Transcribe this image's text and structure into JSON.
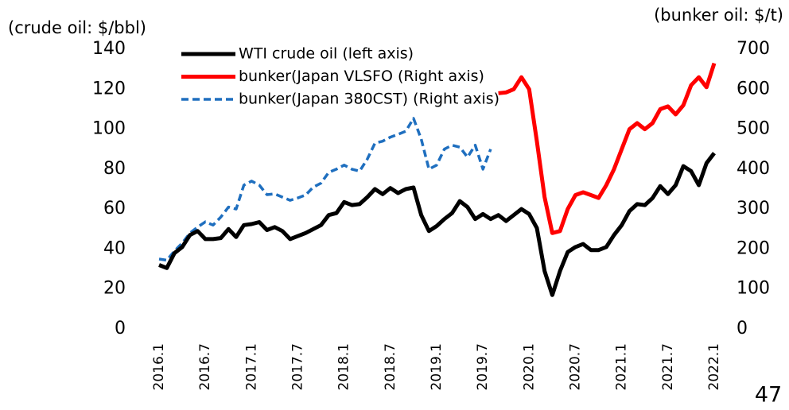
{
  "chart_data": {
    "type": "line",
    "y_label": "(crude oil: $/bbl)",
    "y2_label": "(bunker oil: $/t)",
    "page_number": "47",
    "categories": [
      "2016.1",
      null,
      null,
      null,
      null,
      null,
      "2016.7",
      null,
      null,
      null,
      null,
      null,
      "2017.1",
      null,
      null,
      null,
      null,
      null,
      "2017.7",
      null,
      null,
      null,
      null,
      null,
      "2018.1",
      null,
      null,
      null,
      null,
      null,
      "2018.7",
      null,
      null,
      null,
      null,
      null,
      "2019.1",
      null,
      null,
      null,
      null,
      null,
      "2019.7",
      null,
      null,
      null,
      null,
      null,
      "2020.1",
      null,
      null,
      null,
      null,
      null,
      "2020.7",
      null,
      null,
      null,
      null,
      null,
      "2021.1",
      null,
      null,
      null,
      null,
      null,
      "2021.7",
      null,
      null,
      null,
      null,
      null,
      "2022.1"
    ],
    "ylim": [
      0,
      140
    ],
    "yticks": [
      0,
      20,
      40,
      60,
      80,
      100,
      120,
      140
    ],
    "y2lim": [
      0,
      700
    ],
    "y2ticks": [
      0,
      100,
      200,
      300,
      400,
      500,
      600,
      700
    ],
    "grid": false,
    "legend": "top-left",
    "series": [
      {
        "name": "WTI crude oil  (left axis)",
        "color": "#000000",
        "style": "solid",
        "values": [
          32,
          30.5,
          38,
          41,
          47,
          49,
          45,
          45,
          45.5,
          50,
          46,
          52,
          52.5,
          53.5,
          49.5,
          51,
          49,
          45,
          46.5,
          48,
          50,
          52,
          57,
          58,
          63.5,
          62,
          62.5,
          66,
          70,
          67.5,
          70.5,
          68,
          70,
          70.8,
          57,
          49,
          51.5,
          55,
          58,
          64,
          61,
          55,
          57.5,
          55,
          57,
          54,
          57,
          60,
          57.5,
          50.5,
          29,
          17,
          29,
          38.5,
          41,
          42.5,
          39.5,
          39.5,
          41,
          47,
          52,
          59,
          62.5,
          62,
          65.5,
          71.5,
          67.5,
          72,
          81.5,
          79,
          72,
          83,
          88
        ]
      },
      {
        "name": "bunker(Japan VLSFO (Right axis)",
        "color": "#ff0000",
        "style": "solid",
        "axis": "y2",
        "values": [
          null,
          null,
          null,
          null,
          null,
          null,
          null,
          null,
          null,
          null,
          null,
          null,
          null,
          null,
          null,
          null,
          null,
          null,
          null,
          null,
          null,
          null,
          null,
          null,
          null,
          null,
          null,
          null,
          null,
          null,
          null,
          null,
          null,
          null,
          null,
          null,
          null,
          null,
          null,
          null,
          null,
          null,
          null,
          null,
          590,
          592,
          600,
          630,
          600,
          470,
          330,
          240,
          245,
          300,
          335,
          342,
          335,
          328,
          360,
          400,
          450,
          500,
          515,
          500,
          515,
          550,
          557,
          537,
          560,
          610,
          630,
          605,
          665
        ]
      },
      {
        "name": "bunker(Japan 380CST) (Right axis)",
        "color": "#1f6fbf",
        "style": "dashed",
        "axis": "y2",
        "values": [
          175,
          172,
          195,
          215,
          240,
          255,
          268,
          260,
          280,
          305,
          300,
          360,
          370,
          360,
          336,
          338,
          330,
          322,
          328,
          335,
          355,
          365,
          392,
          400,
          410,
          400,
          395,
          425,
          465,
          470,
          480,
          487,
          495,
          527,
          475,
          400,
          410,
          450,
          460,
          455,
          430,
          460,
          400,
          450,
          null,
          null,
          null,
          null,
          null,
          null,
          null,
          null,
          null,
          null,
          null,
          null,
          null,
          null,
          null,
          null,
          null,
          null,
          null,
          null,
          null,
          null,
          null,
          null,
          null,
          null,
          null,
          null,
          null
        ]
      }
    ]
  }
}
